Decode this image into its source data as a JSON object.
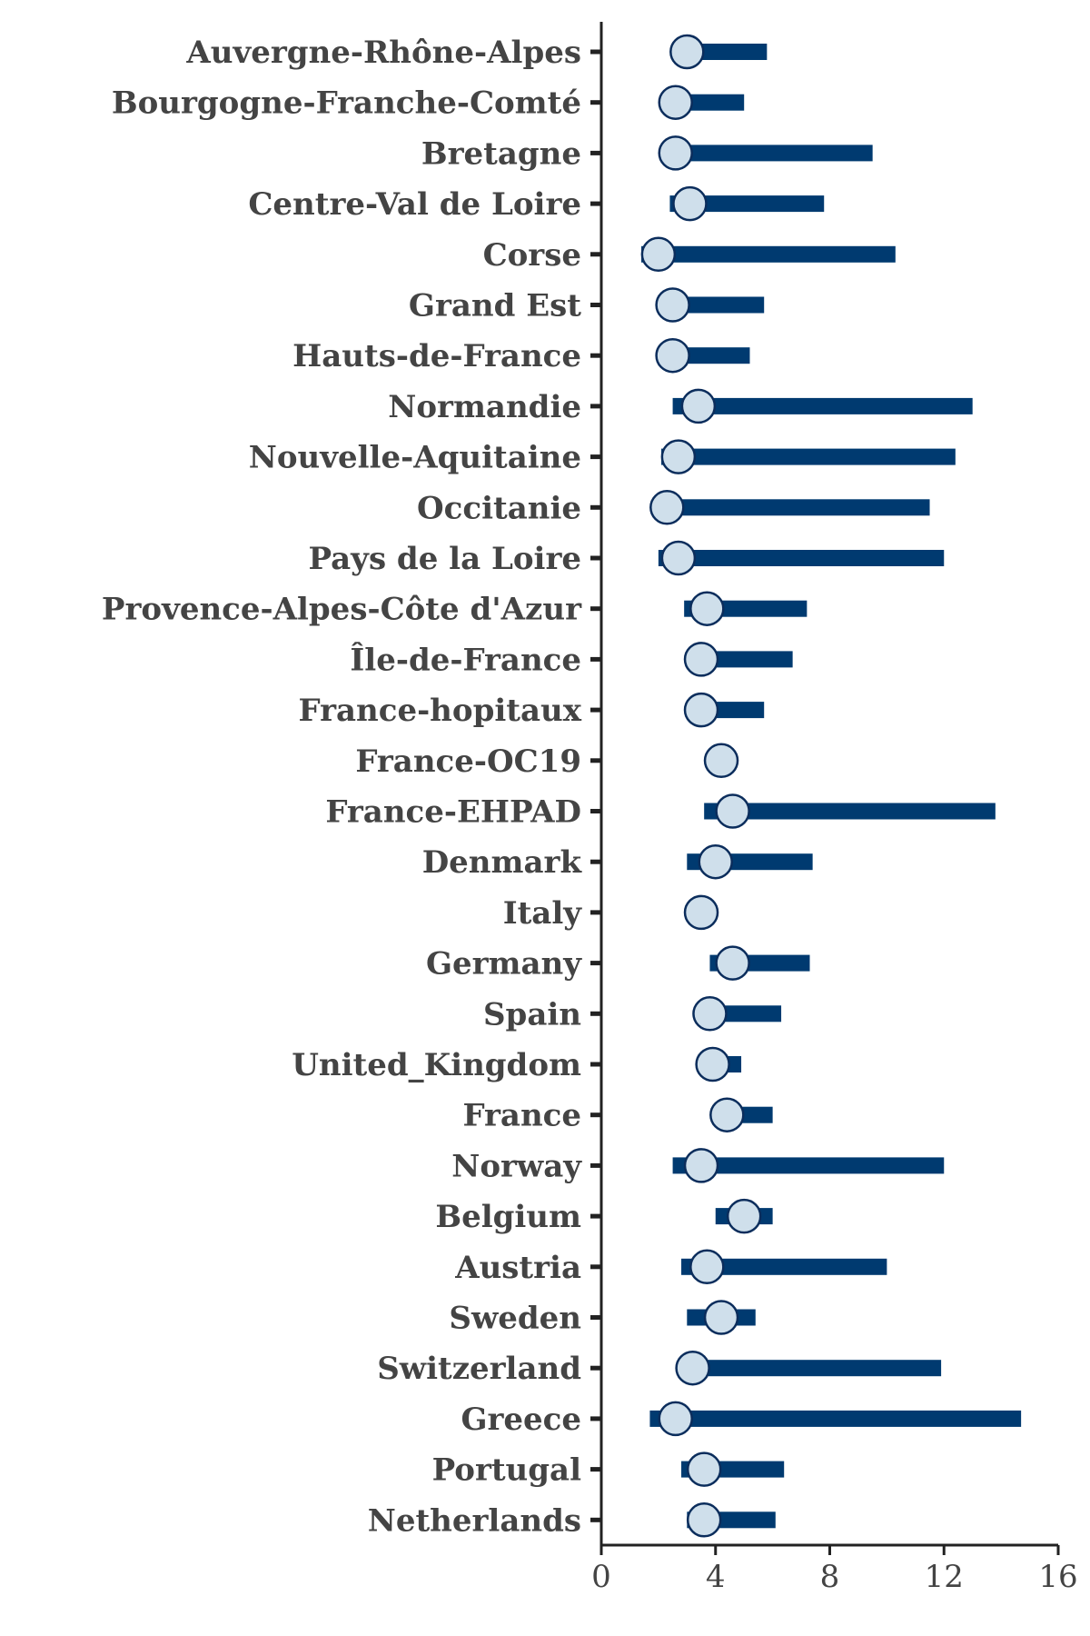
{
  "chart_data": {
    "type": "dot-range",
    "categories": [
      "Auvergne-Rhône-Alpes",
      "Bourgogne-Franche-Comté",
      "Bretagne",
      "Centre-Val de Loire",
      "Corse",
      "Grand Est",
      "Hauts-de-France",
      "Normandie",
      "Nouvelle-Aquitaine",
      "Occitanie",
      "Pays de la Loire",
      "Provence-Alpes-Côte d'Azur",
      "Île-de-France",
      "France-hopitaux",
      "France-OC19",
      "France-EHPAD",
      "Denmark",
      "Italy",
      "Germany",
      "Spain",
      "United_Kingdom",
      "France",
      "Norway",
      "Belgium",
      "Austria",
      "Sweden",
      "Switzerland",
      "Greece",
      "Portugal",
      "Netherlands"
    ],
    "series": [
      {
        "values": [
          3.0,
          2.6,
          2.6,
          3.1,
          2.0,
          2.5,
          2.5,
          3.4,
          2.7,
          2.3,
          2.7,
          3.7,
          3.5,
          3.5,
          4.2,
          4.6,
          4.0,
          3.5,
          4.6,
          3.8,
          3.9,
          4.4,
          3.5,
          5.0,
          3.7,
          4.2,
          3.2,
          2.6,
          3.6,
          3.6
        ]
      },
      {
        "values": [
          2.7,
          2.1,
          2.1,
          2.4,
          1.4,
          2.1,
          2.1,
          2.5,
          2.1,
          2.0,
          2.0,
          2.9,
          3.1,
          3.1,
          3.9,
          3.6,
          3.0,
          3.4,
          3.8,
          3.3,
          3.5,
          4.0,
          2.5,
          4.0,
          2.8,
          3.0,
          2.8,
          1.7,
          2.8,
          3.0
        ]
      },
      {
        "values": [
          5.8,
          5.0,
          9.5,
          7.8,
          10.3,
          5.7,
          5.2,
          13.0,
          12.4,
          11.5,
          12.0,
          7.2,
          6.7,
          5.7,
          4.7,
          13.8,
          7.4,
          3.5,
          7.3,
          6.3,
          4.9,
          6.0,
          12.0,
          6.0,
          10.0,
          5.4,
          11.9,
          14.7,
          6.4,
          6.1
        ]
      }
    ],
    "x_ticks": [
      "0",
      "4",
      "8",
      "12",
      "16"
    ],
    "xlim": [
      0,
      16
    ],
    "grid": false,
    "colors": {
      "range": "#003a70",
      "marker_fill": "#cfdfeb",
      "marker_stroke": "#0b2d5c",
      "axis": "#222222",
      "text": "#444444"
    }
  }
}
